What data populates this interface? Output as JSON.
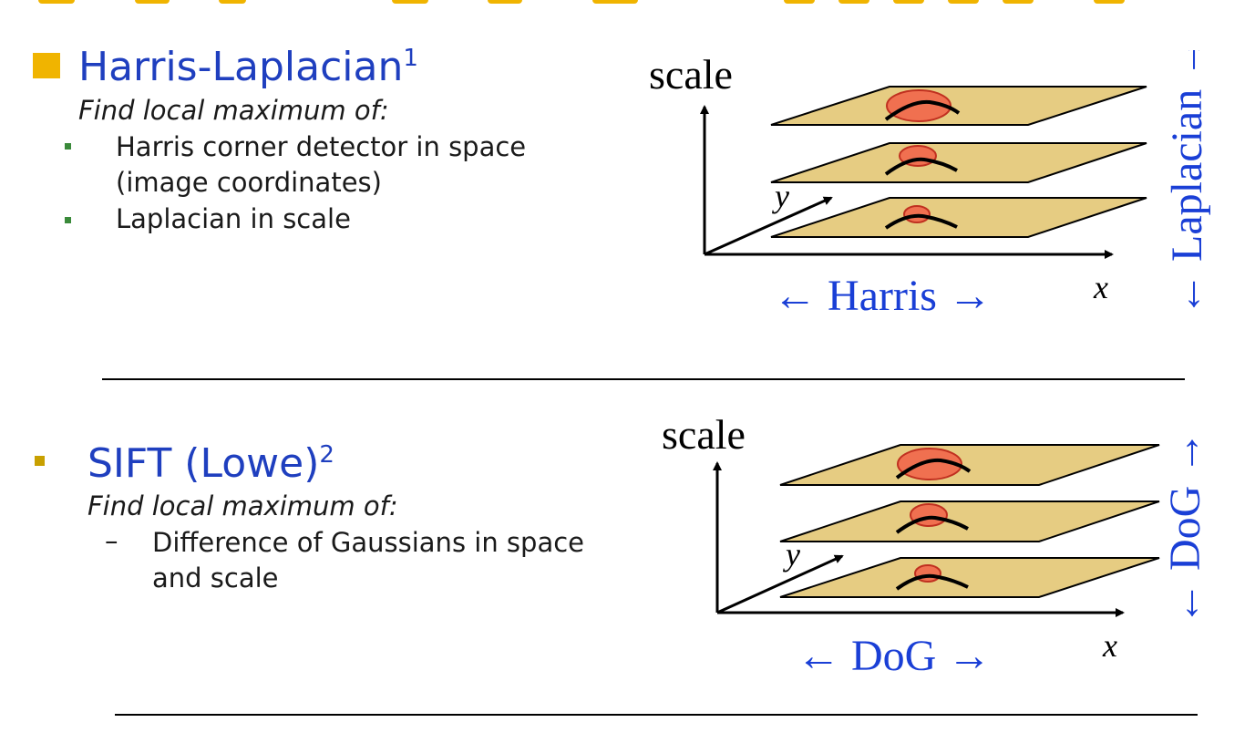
{
  "section1": {
    "heading": "Harris-Laplacian",
    "heading_sup": "1",
    "subtitle": "Find local maximum of:",
    "bullets": [
      "Harris corner detector in space",
      "(image coordinates)",
      "Laplacian in scale"
    ],
    "diagram": {
      "scale_label": "scale",
      "y_label": "y",
      "x_label": "x",
      "bottom_label": "← Harris →",
      "side_label": "← Laplacian →"
    }
  },
  "section2": {
    "heading": "SIFT (Lowe)",
    "heading_sup": "2",
    "subtitle": "Find local maximum of:",
    "dash": "–",
    "bullets": [
      "Difference of Gaussians in space",
      "and scale"
    ],
    "diagram": {
      "scale_label": "scale",
      "y_label": "y",
      "x_label": "x",
      "bottom_label": "← DoG →",
      "side_label": "← DoG →"
    }
  },
  "colors": {
    "accent": "#f0b400",
    "heading": "#1f3fbf",
    "diagram_blue": "#1a3fd6",
    "plane_fill": "#e6cc82",
    "blob": "#f07050",
    "green_bullet": "#3a8a3a"
  }
}
